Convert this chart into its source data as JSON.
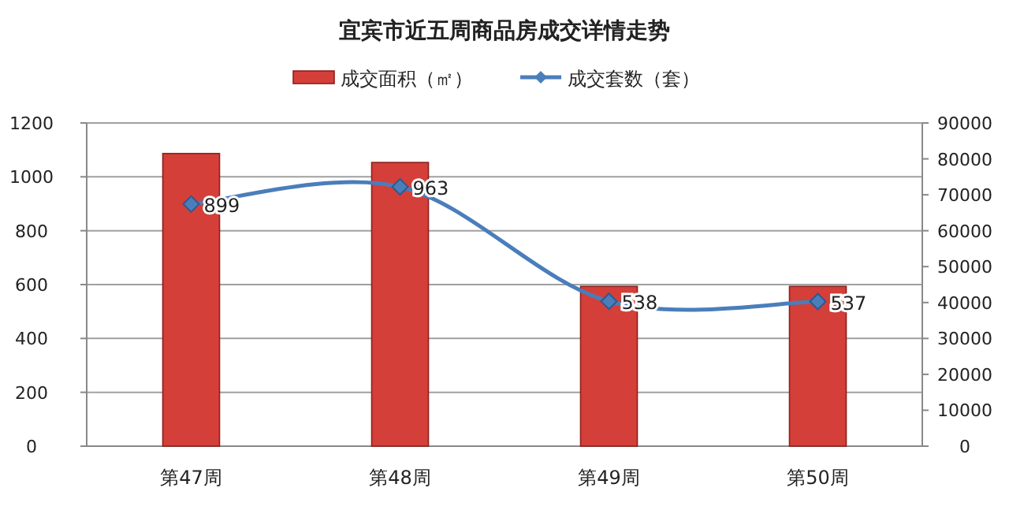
{
  "chart_data": {
    "type": "bar",
    "title": "宜宾市近五周商品房成交详情走势",
    "categories": [
      "第47周",
      "第48周",
      "第49周",
      "第50周"
    ],
    "series": [
      {
        "name": "成交面积（㎡）",
        "axis": "y2",
        "color": "#d43f3a",
        "values": [
          81500,
          79000,
          44500,
          44500
        ]
      },
      {
        "name": "成交套数（套）",
        "type": "line",
        "marker": "diamond",
        "color": "#4a7ebb",
        "values": [
          899,
          963,
          538,
          537
        ],
        "value_labels": [
          "899",
          "963",
          "538",
          "537"
        ]
      }
    ],
    "ylim": [
      0,
      1200
    ],
    "yticks": [
      0,
      200,
      400,
      600,
      800,
      1000,
      1200
    ],
    "y2lim": [
      0,
      90000
    ],
    "y2ticks": [
      0,
      10000,
      20000,
      30000,
      40000,
      50000,
      60000,
      70000,
      80000,
      90000
    ],
    "grid": "y",
    "legend": "top"
  }
}
